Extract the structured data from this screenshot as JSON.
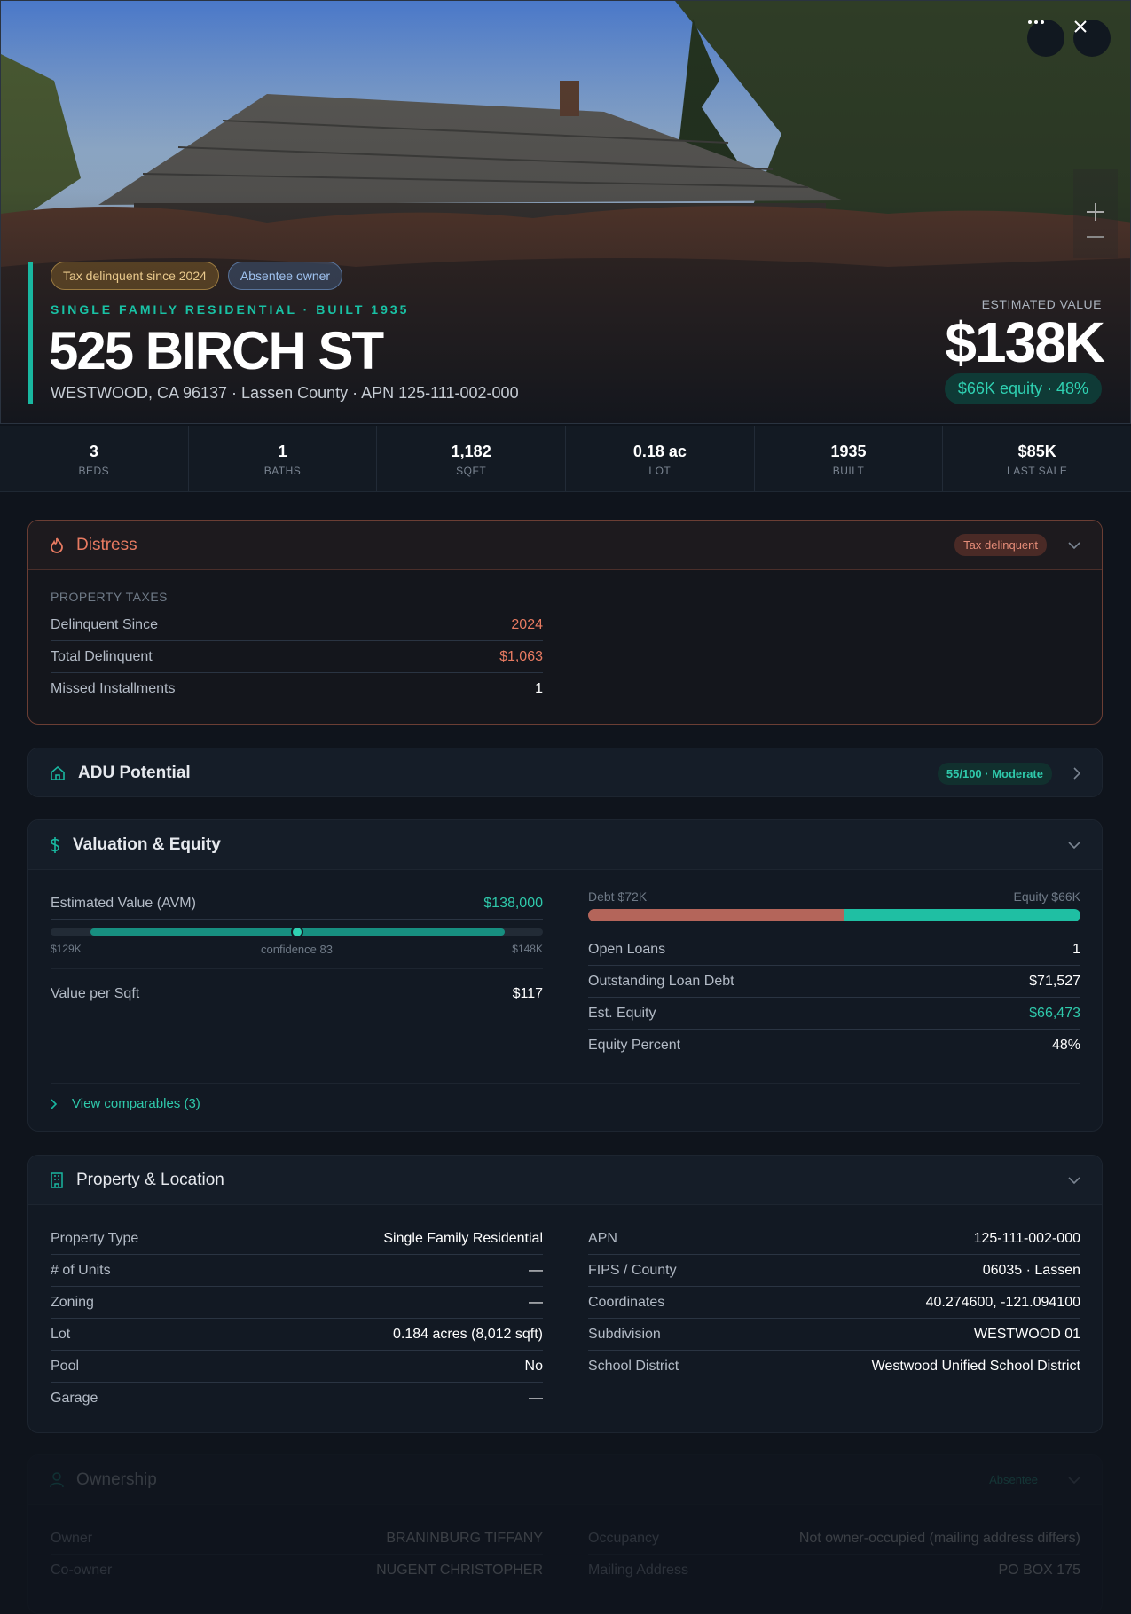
{
  "hero": {
    "badges": [
      "Tax delinquent since 2024",
      "Absentee owner"
    ],
    "kicker": "SINGLE FAMILY RESIDENTIAL · BUILT 1935",
    "title": "525 BIRCH ST",
    "subtitle": "WESTWOOD, CA 96137 · Lassen County · APN 125-111-002-000",
    "estimate_label": "ESTIMATED VALUE",
    "estimate": "$138K",
    "equity_badge": "$66K equity · 48%"
  },
  "stats": [
    {
      "value": "3",
      "label": "BEDS"
    },
    {
      "value": "1",
      "label": "BATHS"
    },
    {
      "value": "1,182",
      "label": "SQFT"
    },
    {
      "value": "0.18 ac",
      "label": "LOT"
    },
    {
      "value": "1935",
      "label": "BUILT"
    },
    {
      "value": "$85K",
      "label": "LAST SALE"
    }
  ],
  "distress": {
    "title": "Distress",
    "badge": "Tax delinquent",
    "section_label": "PROPERTY TAXES",
    "rows": [
      [
        "Delinquent Since",
        "2024"
      ],
      [
        "Total Delinquent",
        "$1,063"
      ],
      [
        "Missed Installments",
        "1"
      ]
    ]
  },
  "adu": {
    "title": "ADU Potential",
    "badge": "55/100 · Moderate"
  },
  "valuation": {
    "title": "Valuation & Equity",
    "avm_label": "Estimated Value (AVM)",
    "avm_value": "$138,000",
    "range_low": "$129K",
    "confidence": "confidence 83",
    "range_high": "$148K",
    "left_rows": [
      [
        "Value per Sqft",
        "$117"
      ]
    ],
    "debt_label": "Debt $72K",
    "equity_label": "Equity $66K",
    "right_rows": [
      [
        "Open Loans",
        "1"
      ],
      [
        "Outstanding Loan Debt",
        "$71,527"
      ],
      [
        "Est. Equity",
        "$66,473"
      ],
      [
        "Equity Percent",
        "48%"
      ]
    ],
    "link": "View comparables (3)"
  },
  "property": {
    "title": "Property & Location",
    "left_rows": [
      [
        "Property Type",
        "Single Family Residential"
      ],
      [
        "# of Units",
        "—"
      ],
      [
        "Zoning",
        "—"
      ],
      [
        "Lot",
        "0.184 acres (8,012 sqft)"
      ],
      [
        "Pool",
        "No"
      ],
      [
        "Garage",
        "—"
      ]
    ],
    "right_rows": [
      [
        "APN",
        "125-111-002-000"
      ],
      [
        "FIPS / County",
        "06035 · Lassen"
      ],
      [
        "Coordinates",
        "40.274600, -121.094100"
      ],
      [
        "Subdivision",
        "WESTWOOD 01"
      ],
      [
        "School District",
        "Westwood Unified School District"
      ]
    ]
  },
  "ownership": {
    "title": "Ownership",
    "badge": "Absentee",
    "left_rows": [
      [
        "Owner",
        "BRANINBURG TIFFANY"
      ],
      [
        "Co-owner",
        "NUGENT CHRISTOPHER"
      ]
    ],
    "right_rows": [
      [
        "Occupancy",
        "Not owner-occupied (mailing address differs)"
      ],
      [
        "Mailing Address",
        "PO BOX 175"
      ]
    ]
  }
}
